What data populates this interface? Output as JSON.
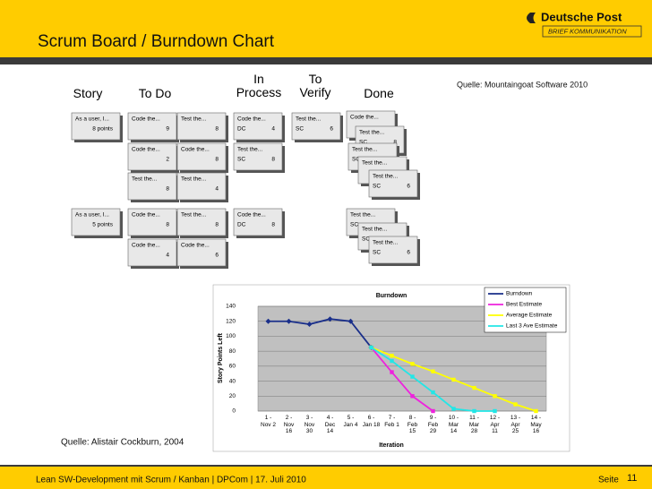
{
  "header": {
    "title": "Scrum Board / Burndown Chart",
    "logo": "Deutsche Post",
    "logo_sub": "BRIEF KOMMUNIKATION"
  },
  "board": {
    "columns": [
      "Story",
      "To Do",
      "In\nProcess",
      "To\nVerify",
      "Done"
    ],
    "cards": [
      {
        "title": "As a user, I...",
        "right": "8 points"
      },
      {
        "title": "Code the...",
        "right": "9"
      },
      {
        "title": "Test the...",
        "right": "8"
      },
      {
        "title": "Code the...",
        "right": "2"
      },
      {
        "title": "Code the...",
        "right": "8"
      },
      {
        "title": "Test the...",
        "right": "8"
      },
      {
        "title": "Test the...",
        "right": "4"
      },
      {
        "title": "Code the...",
        "left": "DC",
        "right": "4"
      },
      {
        "title": "Test the...",
        "left": "SC",
        "right": "8"
      },
      {
        "title": "Test the...",
        "left": "SC",
        "right": "6"
      },
      {
        "title": "Code the..."
      },
      {
        "title": "Test the...",
        "left": "SC",
        "right": "8"
      },
      {
        "title": "Test the...",
        "left": "SC"
      },
      {
        "title": "Test the..."
      },
      {
        "title": "Test the...",
        "left": "SC",
        "right": "6"
      },
      {
        "title": "As a user, I...",
        "right": "5 points"
      },
      {
        "title": "Code the...",
        "right": "8"
      },
      {
        "title": "Test the...",
        "right": "8"
      },
      {
        "title": "Code the...",
        "right": "4"
      },
      {
        "title": "Code the...",
        "right": "6"
      },
      {
        "title": "Code the...",
        "left": "DC",
        "right": "8"
      },
      {
        "title": "Test the...",
        "left": "SC"
      },
      {
        "title": "Test the...",
        "left": "SC"
      },
      {
        "title": "Test the...",
        "left": "SC",
        "right": "6"
      }
    ]
  },
  "source_board": "Quelle: Mountaingoat Software 2010",
  "source_chart": "Quelle: Alistair Cockburn, 2004",
  "chart_data": {
    "type": "line",
    "title": "Burndown",
    "x_label": "Iteration",
    "y_label": "Story Points Left",
    "categories": [
      "1 -\nNov 2",
      "2 -\nNov\n16",
      "3 -\nNov\n30",
      "4 -\nDec\n14",
      "5 -\nJan 4",
      "6 -\nJan 18",
      "7 -\nFeb 1",
      "8 -\nFeb\n15",
      "9 -\nFeb\n29",
      "10 -\nMar\n14",
      "11 -\nMar\n28",
      "12 -\nApr\n11",
      "13 -\nApr\n25",
      "14 -\nMay\n16"
    ],
    "ylim": [
      0,
      140
    ],
    "yticks": [
      0,
      20,
      40,
      60,
      80,
      100,
      120,
      140
    ],
    "grid": true,
    "legend": "top-right",
    "series": [
      {
        "name": "Burndown",
        "color": "#1a2f8a",
        "values": [
          120,
          120,
          116,
          123,
          120,
          85,
          null,
          null,
          null,
          null,
          null,
          null,
          null,
          null
        ]
      },
      {
        "name": "Best Estimate",
        "color": "#ee22dd",
        "values": [
          null,
          null,
          null,
          null,
          null,
          85,
          52,
          20,
          0,
          null,
          null,
          null,
          null,
          null
        ]
      },
      {
        "name": "Average Estimate",
        "color": "#ffff00",
        "values": [
          null,
          null,
          null,
          null,
          null,
          85,
          74,
          63,
          53,
          42,
          31,
          20,
          9,
          0
        ]
      },
      {
        "name": "Last 3 Ave Estimate",
        "color": "#22e6e6",
        "values": [
          null,
          null,
          null,
          null,
          null,
          85,
          67,
          46,
          25,
          3,
          0,
          0,
          null,
          null
        ]
      }
    ]
  },
  "footer": {
    "text": "Lean SW-Development mit Scrum / Kanban | DPCom | 17. Juli 2010",
    "page_label": "Seite",
    "page": "11"
  }
}
